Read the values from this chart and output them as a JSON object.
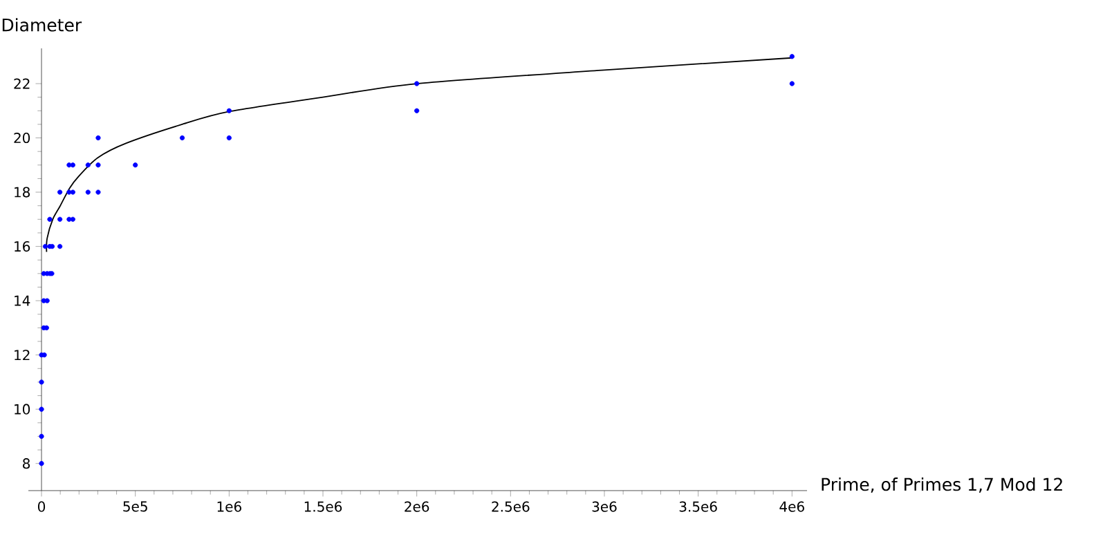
{
  "chart_data": {
    "type": "scatter",
    "xlabel": "Prime, of Primes 1,7 Mod 12",
    "ylabel": "Diameter",
    "xlim": [
      -70000,
      4080000
    ],
    "ylim": [
      7,
      23.3
    ],
    "xticks": [
      0,
      {
        "value": 500000,
        "label": "5e5"
      },
      {
        "value": 1000000,
        "label": "1e6"
      },
      {
        "value": 1500000,
        "label": "1.5e6"
      },
      {
        "value": 2000000,
        "label": "2e6"
      },
      {
        "value": 2500000,
        "label": "2.5e6"
      },
      {
        "value": 3000000,
        "label": "3e6"
      },
      {
        "value": 3500000,
        "label": "3.5e6"
      },
      {
        "value": 4000000,
        "label": "4e6"
      }
    ],
    "yticks": [
      8,
      10,
      12,
      14,
      16,
      18,
      20,
      22
    ],
    "grid": false,
    "series": [
      {
        "color": "#0000ff",
        "marker": "circle",
        "x": [
          0,
          0,
          0,
          0,
          0,
          15000,
          12000,
          27000,
          12000,
          30000,
          12000,
          30000,
          45000,
          55000,
          20000,
          44000,
          57000,
          98000,
          44000,
          98000,
          147000,
          167000,
          98000,
          147000,
          167000,
          248000,
          302000,
          147000,
          167000,
          248000,
          302000,
          500000,
          302000,
          750000,
          1000000,
          1000000,
          2000000,
          2000000,
          4000000,
          4000000
        ],
        "values": [
          8,
          9,
          10,
          11,
          12,
          12,
          13,
          13,
          14,
          14,
          15,
          15,
          15,
          15,
          16,
          16,
          16,
          16,
          17,
          17,
          17,
          17,
          18,
          18,
          18,
          18,
          18,
          19,
          19,
          19,
          19,
          19,
          20,
          20,
          20,
          21,
          21,
          22,
          22,
          23
        ]
      },
      {
        "type": "line",
        "color": "#000000",
        "marker": "none",
        "line_style": "solid",
        "x": [
          27000,
          30000,
          60000,
          100000,
          150000,
          200000,
          300000,
          450000,
          750000,
          1000000,
          1500000,
          2000000,
          3000000,
          4000000
        ],
        "values": [
          15.8,
          16.3,
          17.0,
          17.5,
          18.15,
          18.6,
          19.27,
          19.8,
          20.5,
          20.97,
          21.5,
          22.0,
          22.5,
          22.95
        ]
      }
    ]
  }
}
